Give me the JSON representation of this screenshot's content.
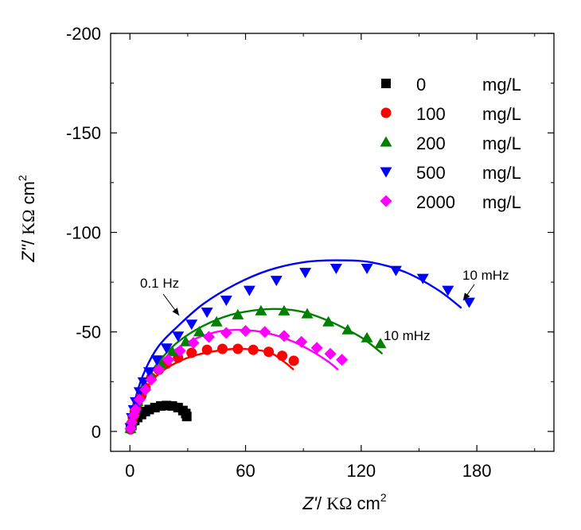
{
  "chart_data": {
    "type": "scatter",
    "title": "",
    "xlabel": {
      "var": "Z'",
      "sep": "/ ",
      "unit": "KΩ",
      "tail": " cm",
      "sup": "2"
    },
    "ylabel": {
      "var": "Z''",
      "sep": "/ ",
      "unit": "KΩ",
      "tail": " cm",
      "sup": "2"
    },
    "xlim": [
      -10,
      220
    ],
    "ylim": [
      10,
      -200
    ],
    "y_inverted": true,
    "x_ticks": [
      0,
      60,
      120,
      180
    ],
    "x_tick_labels": [
      "0",
      "60",
      "120",
      "180"
    ],
    "y_ticks": [
      0,
      -50,
      -100,
      -150,
      -200
    ],
    "y_tick_labels": [
      "0",
      "-50",
      "-100",
      "-150",
      "-200"
    ],
    "grid": false,
    "legend_position": "top-right",
    "series": [
      {
        "name": "0",
        "unit": "mg/L",
        "color": "#000000",
        "marker": "square",
        "points": [
          [
            0.3,
            -1.5
          ],
          [
            1,
            -3
          ],
          [
            2.5,
            -5.5
          ],
          [
            4,
            -7
          ],
          [
            6,
            -8.5
          ],
          [
            8,
            -10
          ],
          [
            10,
            -11
          ],
          [
            13,
            -12
          ],
          [
            16,
            -12.8
          ],
          [
            19,
            -13
          ],
          [
            22,
            -12.8
          ],
          [
            25,
            -12
          ],
          [
            27.5,
            -10.5
          ],
          [
            29,
            -9
          ],
          [
            29.5,
            -7.5
          ]
        ],
        "fit": null
      },
      {
        "name": "100",
        "unit": "mg/L",
        "color": "#ff0000",
        "marker": "circle",
        "points": [
          [
            0.3,
            -1
          ],
          [
            0.8,
            -4
          ],
          [
            1.5,
            -7
          ],
          [
            2.5,
            -10
          ],
          [
            4,
            -14
          ],
          [
            6,
            -18
          ],
          [
            8,
            -22
          ],
          [
            11,
            -27
          ],
          [
            15,
            -31
          ],
          [
            19,
            -34
          ],
          [
            25,
            -37
          ],
          [
            32,
            -39.5
          ],
          [
            40,
            -41
          ],
          [
            48,
            -41.5
          ],
          [
            56,
            -41.5
          ],
          [
            64,
            -41
          ],
          [
            72,
            -40
          ],
          [
            79,
            -38
          ],
          [
            85,
            -35.5
          ]
        ],
        "fit": [
          [
            0,
            0
          ],
          [
            3,
            -11
          ],
          [
            8,
            -21
          ],
          [
            15,
            -29
          ],
          [
            25,
            -35
          ],
          [
            35,
            -38.5
          ],
          [
            45,
            -40.5
          ],
          [
            55,
            -41.5
          ],
          [
            65,
            -41
          ],
          [
            73,
            -39.5
          ],
          [
            80,
            -35
          ],
          [
            85,
            -31
          ]
        ]
      },
      {
        "name": "200",
        "unit": "mg/L",
        "color": "#008000",
        "marker": "triangle-up",
        "points": [
          [
            0.3,
            -1.5
          ],
          [
            1,
            -5
          ],
          [
            2,
            -9
          ],
          [
            4,
            -15
          ],
          [
            7,
            -22
          ],
          [
            11,
            -28
          ],
          [
            16,
            -34
          ],
          [
            22,
            -40
          ],
          [
            29,
            -45
          ],
          [
            36,
            -50
          ],
          [
            45,
            -55
          ],
          [
            56,
            -58.5
          ],
          [
            68,
            -60.5
          ],
          [
            80,
            -60.5
          ],
          [
            92,
            -59
          ],
          [
            103,
            -55
          ],
          [
            113,
            -51
          ],
          [
            123,
            -47
          ],
          [
            130,
            -44
          ]
        ],
        "fit": [
          [
            0,
            0
          ],
          [
            3,
            -13
          ],
          [
            8,
            -25
          ],
          [
            15,
            -35
          ],
          [
            25,
            -45
          ],
          [
            38,
            -53
          ],
          [
            52,
            -58.5
          ],
          [
            66,
            -61
          ],
          [
            78,
            -61.5
          ],
          [
            90,
            -60
          ],
          [
            102,
            -56
          ],
          [
            113,
            -51
          ],
          [
            122,
            -46
          ],
          [
            131,
            -39
          ]
        ]
      },
      {
        "name": "500",
        "unit": "mg/L",
        "color": "#0000ff",
        "marker": "triangle-down",
        "points": [
          [
            0.3,
            -2
          ],
          [
            1,
            -7
          ],
          [
            2,
            -11
          ],
          [
            3,
            -15
          ],
          [
            5,
            -20
          ],
          [
            7,
            -25
          ],
          [
            10,
            -30
          ],
          [
            14,
            -36
          ],
          [
            19,
            -42
          ],
          [
            25,
            -48
          ],
          [
            32,
            -54
          ],
          [
            40,
            -60
          ],
          [
            50,
            -66
          ],
          [
            62,
            -71
          ],
          [
            76,
            -76
          ],
          [
            91,
            -80
          ],
          [
            107,
            -82
          ],
          [
            123,
            -82
          ],
          [
            138,
            -81
          ],
          [
            152,
            -77
          ],
          [
            165,
            -71
          ],
          [
            176,
            -65
          ]
        ],
        "fit": [
          [
            0,
            0
          ],
          [
            3,
            -17
          ],
          [
            8,
            -31
          ],
          [
            15,
            -43
          ],
          [
            25,
            -53
          ],
          [
            38,
            -64
          ],
          [
            55,
            -74
          ],
          [
            72,
            -81
          ],
          [
            90,
            -85
          ],
          [
            107,
            -86
          ],
          [
            125,
            -85
          ],
          [
            143,
            -80
          ],
          [
            160,
            -71
          ],
          [
            172,
            -62
          ]
        ]
      },
      {
        "name": "2000",
        "unit": "mg/L",
        "color": "#ff00ff",
        "marker": "diamond",
        "points": [
          [
            0.3,
            -1.5
          ],
          [
            1,
            -4.5
          ],
          [
            2,
            -8
          ],
          [
            3,
            -11
          ],
          [
            5,
            -16
          ],
          [
            8,
            -21
          ],
          [
            11,
            -26
          ],
          [
            15,
            -31
          ],
          [
            20,
            -36
          ],
          [
            26,
            -40.5
          ],
          [
            33,
            -44.5
          ],
          [
            41,
            -47.5
          ],
          [
            50,
            -49.5
          ],
          [
            60,
            -50.5
          ],
          [
            70,
            -50
          ],
          [
            80,
            -48
          ],
          [
            89,
            -45
          ],
          [
            97,
            -42
          ],
          [
            104,
            -39
          ],
          [
            110,
            -36
          ]
        ],
        "fit": [
          [
            0,
            0
          ],
          [
            3,
            -13
          ],
          [
            8,
            -25
          ],
          [
            15,
            -34
          ],
          [
            25,
            -42
          ],
          [
            35,
            -47
          ],
          [
            45,
            -50
          ],
          [
            55,
            -51
          ],
          [
            65,
            -50.5
          ],
          [
            75,
            -48.5
          ],
          [
            85,
            -45
          ],
          [
            95,
            -40
          ],
          [
            103,
            -35
          ],
          [
            108,
            -31
          ]
        ]
      }
    ],
    "annotations": [
      {
        "text": "0.1 Hz",
        "at": [
          24,
          -57
        ]
      },
      {
        "text": "10 mHz",
        "at": [
          175,
          -65
        ]
      },
      {
        "text": "10 mHz",
        "at": [
          130,
          -46
        ]
      }
    ]
  }
}
